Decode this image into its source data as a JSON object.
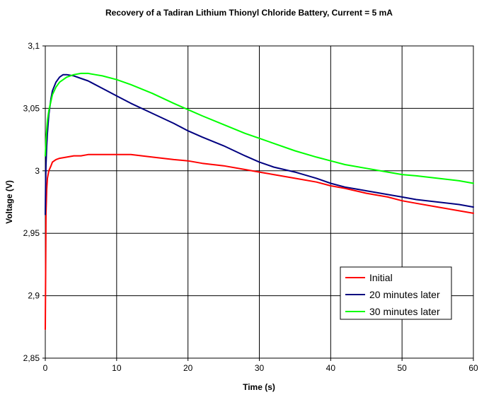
{
  "chart_data": {
    "type": "line",
    "title": "Recovery of a Tadiran Lithium Thionyl Chloride Battery, Current = 5 mA",
    "xlabel": "Time (s)",
    "ylabel": "Voltage (V)",
    "xlim": [
      0,
      60
    ],
    "ylim": [
      2.85,
      3.1
    ],
    "grid": true,
    "legend_position": "bottom-right",
    "x_ticks": [
      "0",
      "10",
      "20",
      "30",
      "40",
      "50",
      "60"
    ],
    "y_ticks": [
      "2,85",
      "2,9",
      "2,95",
      "3",
      "3,05",
      "3,1"
    ],
    "series": [
      {
        "name": "Initial",
        "color": "#ff0000",
        "x": [
          0,
          0.05,
          0.1,
          0.2,
          0.3,
          0.5,
          0.8,
          1.0,
          1.5,
          2,
          3,
          4,
          5,
          6,
          8,
          10,
          12,
          15,
          18,
          20,
          22,
          25,
          28,
          30,
          32,
          35,
          38,
          40,
          42,
          45,
          48,
          50,
          52,
          55,
          58,
          60
        ],
        "y": [
          2.873,
          2.918,
          2.966,
          2.985,
          2.994,
          3.0,
          3.004,
          3.007,
          3.009,
          3.01,
          3.011,
          3.012,
          3.012,
          3.013,
          3.013,
          3.013,
          3.013,
          3.011,
          3.009,
          3.008,
          3.006,
          3.004,
          3.001,
          2.999,
          2.997,
          2.994,
          2.991,
          2.988,
          2.986,
          2.982,
          2.979,
          2.976,
          2.974,
          2.971,
          2.968,
          2.966
        ]
      },
      {
        "name": "20 minutes later",
        "color": "#000080",
        "x": [
          0,
          0.05,
          0.1,
          0.2,
          0.3,
          0.5,
          0.8,
          1.0,
          1.5,
          2,
          2.5,
          3,
          4,
          5,
          6,
          8,
          10,
          12,
          15,
          18,
          20,
          22,
          25,
          28,
          30,
          32,
          35,
          38,
          40,
          42,
          45,
          48,
          50,
          52,
          55,
          58,
          60
        ],
        "y": [
          2.965,
          2.99,
          3.005,
          3.02,
          3.03,
          3.045,
          3.058,
          3.064,
          3.071,
          3.075,
          3.077,
          3.077,
          3.076,
          3.074,
          3.072,
          3.066,
          3.06,
          3.054,
          3.046,
          3.038,
          3.032,
          3.027,
          3.02,
          3.012,
          3.007,
          3.003,
          2.999,
          2.994,
          2.99,
          2.987,
          2.984,
          2.981,
          2.979,
          2.977,
          2.975,
          2.973,
          2.971
        ]
      },
      {
        "name": "30 minutes later",
        "color": "#00ff00",
        "x": [
          0,
          0.05,
          0.1,
          0.2,
          0.3,
          0.5,
          0.8,
          1.0,
          1.5,
          2,
          3,
          4,
          5,
          6,
          7,
          8,
          10,
          12,
          15,
          18,
          20,
          22,
          25,
          28,
          30,
          32,
          35,
          38,
          40,
          42,
          45,
          48,
          50,
          52,
          55,
          58,
          60
        ],
        "y": [
          3.012,
          3.018,
          3.025,
          3.033,
          3.04,
          3.048,
          3.056,
          3.061,
          3.067,
          3.071,
          3.075,
          3.077,
          3.078,
          3.078,
          3.077,
          3.076,
          3.073,
          3.069,
          3.062,
          3.054,
          3.049,
          3.044,
          3.037,
          3.03,
          3.026,
          3.022,
          3.016,
          3.011,
          3.008,
          3.005,
          3.002,
          2.999,
          2.997,
          2.996,
          2.994,
          2.992,
          2.99
        ]
      }
    ]
  }
}
